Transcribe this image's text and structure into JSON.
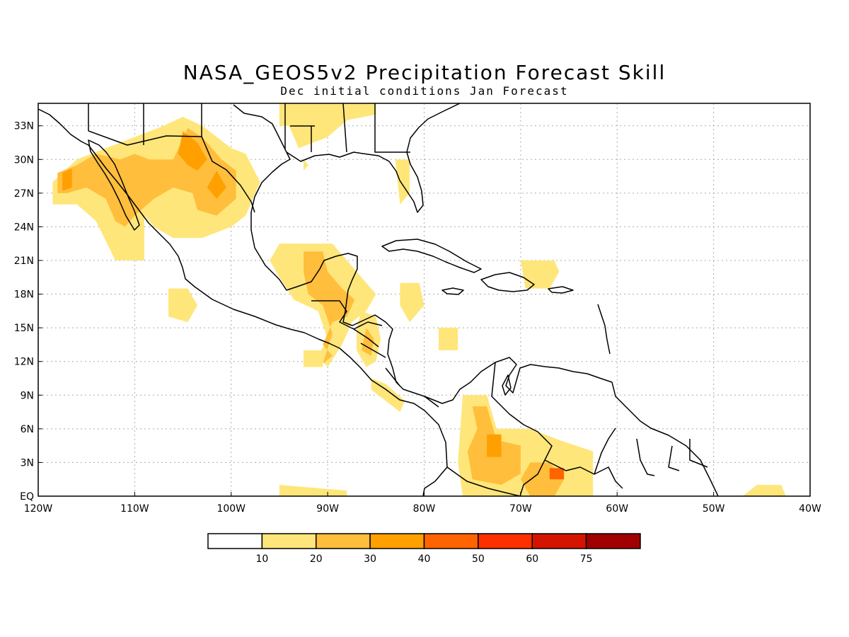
{
  "title": "NASA_GEOS5v2 Precipitation Forecast Skill",
  "subtitle": "Dec initial conditions  Jan Forecast",
  "map": {
    "lon_range": [
      -120,
      -40
    ],
    "lat_range": [
      0,
      35
    ],
    "lon_ticks": [
      {
        "value": -120,
        "label": "120W"
      },
      {
        "value": -110,
        "label": "110W"
      },
      {
        "value": -100,
        "label": "100W"
      },
      {
        "value": -90,
        "label": "90W"
      },
      {
        "value": -80,
        "label": "80W"
      },
      {
        "value": -70,
        "label": "70W"
      },
      {
        "value": -60,
        "label": "60W"
      },
      {
        "value": -50,
        "label": "50W"
      },
      {
        "value": -40,
        "label": "40W"
      }
    ],
    "lat_ticks": [
      {
        "value": 0,
        "label": "EQ"
      },
      {
        "value": 3,
        "label": "3N"
      },
      {
        "value": 6,
        "label": "6N"
      },
      {
        "value": 9,
        "label": "9N"
      },
      {
        "value": 12,
        "label": "12N"
      },
      {
        "value": 15,
        "label": "15N"
      },
      {
        "value": 18,
        "label": "18N"
      },
      {
        "value": 21,
        "label": "21N"
      },
      {
        "value": 24,
        "label": "24N"
      },
      {
        "value": 27,
        "label": "27N"
      },
      {
        "value": 30,
        "label": "30N"
      },
      {
        "value": 33,
        "label": "33N"
      }
    ],
    "grid": true,
    "skill_regions": [
      {
        "level": 10,
        "points": [
          [
            -118.5,
            28
          ],
          [
            -116,
            30
          ],
          [
            -113,
            31
          ],
          [
            -110,
            32
          ],
          [
            -107,
            33
          ],
          [
            -105,
            33.8
          ],
          [
            -103,
            33
          ],
          [
            -100,
            31
          ],
          [
            -98.5,
            30.5
          ],
          [
            -97,
            28
          ],
          [
            -98.5,
            25
          ],
          [
            -100,
            24
          ],
          [
            -103,
            23
          ],
          [
            -106,
            23
          ],
          [
            -108,
            24
          ],
          [
            -109,
            25
          ],
          [
            -109,
            21
          ],
          [
            -112,
            21
          ],
          [
            -114,
            24.5
          ],
          [
            -116,
            26
          ],
          [
            -118.5,
            26
          ]
        ]
      },
      {
        "level": 20,
        "points": [
          [
            -118,
            28.8
          ],
          [
            -116,
            29.5
          ],
          [
            -114,
            30.5
          ],
          [
            -111.5,
            30
          ],
          [
            -110,
            30.5
          ],
          [
            -108.5,
            30
          ],
          [
            -106,
            30
          ],
          [
            -104.5,
            32.8
          ],
          [
            -103,
            32
          ],
          [
            -101,
            30
          ],
          [
            -99.5,
            29
          ],
          [
            -99.5,
            26.5
          ],
          [
            -101.5,
            25
          ],
          [
            -103.5,
            25.5
          ],
          [
            -104,
            27
          ],
          [
            -106,
            27.5
          ],
          [
            -108,
            26.5
          ],
          [
            -110,
            25
          ],
          [
            -111,
            24
          ],
          [
            -112,
            24.5
          ],
          [
            -113,
            26.5
          ],
          [
            -115,
            27.5
          ],
          [
            -117,
            27
          ],
          [
            -118,
            27
          ]
        ]
      },
      {
        "level": 30,
        "points": [
          [
            -117.5,
            28.8
          ],
          [
            -116.5,
            29.2
          ],
          [
            -116.5,
            27.5
          ],
          [
            -117.5,
            27.2
          ]
        ]
      },
      {
        "level": 30,
        "points": [
          [
            -105,
            32.5
          ],
          [
            -103.5,
            31.5
          ],
          [
            -102.5,
            30
          ],
          [
            -103.5,
            29
          ],
          [
            -104.5,
            29.5
          ],
          [
            -105.5,
            30.5
          ]
        ]
      },
      {
        "level": 30,
        "points": [
          [
            -101.5,
            29
          ],
          [
            -100.5,
            27.5
          ],
          [
            -101.5,
            26.5
          ],
          [
            -102.5,
            27.5
          ]
        ]
      },
      {
        "level": 10,
        "points": [
          [
            -95,
            22.5
          ],
          [
            -89.5,
            22.5
          ],
          [
            -86.5,
            19.5
          ],
          [
            -85,
            18
          ],
          [
            -86,
            16.5
          ],
          [
            -87.5,
            15.5
          ],
          [
            -88.5,
            13.5
          ],
          [
            -90,
            11.5
          ],
          [
            -91,
            12.5
          ],
          [
            -90,
            14
          ],
          [
            -91,
            16.5
          ],
          [
            -93.5,
            17.5
          ],
          [
            -95,
            19.5
          ],
          [
            -96,
            21
          ]
        ]
      },
      {
        "level": 20,
        "points": [
          [
            -92.5,
            21.8
          ],
          [
            -90.5,
            21.8
          ],
          [
            -90,
            20
          ],
          [
            -88.5,
            18.5
          ],
          [
            -87.2,
            17.5
          ],
          [
            -88,
            16
          ],
          [
            -89.5,
            15.5
          ],
          [
            -90.5,
            13.5
          ],
          [
            -89.5,
            12.5
          ],
          [
            -90.5,
            11.8
          ],
          [
            -89.5,
            14.5
          ],
          [
            -90.5,
            17
          ],
          [
            -92,
            18
          ],
          [
            -92.5,
            20
          ]
        ]
      },
      {
        "level": 10,
        "points": [
          [
            -86.5,
            16.5
          ],
          [
            -85,
            16
          ],
          [
            -84.5,
            14
          ],
          [
            -85,
            12
          ],
          [
            -86,
            11.5
          ],
          [
            -87,
            13
          ],
          [
            -87,
            15
          ]
        ]
      },
      {
        "level": 20,
        "points": [
          [
            -86,
            15
          ],
          [
            -85.2,
            14
          ],
          [
            -85.5,
            12.5
          ],
          [
            -86.5,
            13
          ]
        ]
      },
      {
        "level": 10,
        "points": [
          [
            -85.5,
            10.5
          ],
          [
            -84,
            10
          ],
          [
            -82,
            8.5
          ],
          [
            -82.5,
            7.5
          ],
          [
            -84,
            8.5
          ],
          [
            -85.5,
            9.5
          ]
        ]
      },
      {
        "level": 10,
        "points": [
          [
            -106.5,
            18.5
          ],
          [
            -104.5,
            18.5
          ],
          [
            -103.5,
            17
          ],
          [
            -104.5,
            15.5
          ],
          [
            -106.5,
            16
          ]
        ]
      },
      {
        "level": 10,
        "points": [
          [
            -92.5,
            13
          ],
          [
            -90.5,
            13
          ],
          [
            -90.5,
            11.5
          ],
          [
            -92.5,
            11.5
          ]
        ]
      },
      {
        "level": 10,
        "points": [
          [
            -82.5,
            19
          ],
          [
            -80.5,
            19
          ],
          [
            -80,
            17
          ],
          [
            -81.5,
            15.5
          ],
          [
            -82.5,
            17
          ]
        ]
      },
      {
        "level": 10,
        "points": [
          [
            -78.5,
            15
          ],
          [
            -76.5,
            15
          ],
          [
            -76.5,
            13
          ],
          [
            -78.5,
            13
          ]
        ]
      },
      {
        "level": 10,
        "points": [
          [
            -95,
            35
          ],
          [
            -85,
            35
          ],
          [
            -85,
            34
          ],
          [
            -88,
            33.5
          ],
          [
            -90,
            32
          ],
          [
            -93,
            31
          ],
          [
            -94,
            33
          ],
          [
            -95,
            33
          ]
        ]
      },
      {
        "level": 10,
        "points": [
          [
            -83,
            30
          ],
          [
            -81.5,
            30
          ],
          [
            -81.5,
            27
          ],
          [
            -82.5,
            26
          ]
        ]
      },
      {
        "level": 10,
        "points": [
          [
            -92.5,
            30
          ],
          [
            -92,
            29.5
          ],
          [
            -92.5,
            29
          ]
        ]
      },
      {
        "level": 10,
        "points": [
          [
            -76,
            9
          ],
          [
            -73.5,
            9
          ],
          [
            -72.5,
            6
          ],
          [
            -69,
            6
          ],
          [
            -66,
            5
          ],
          [
            -62.5,
            4
          ],
          [
            -62.5,
            0
          ],
          [
            -76,
            0
          ],
          [
            -76.5,
            3
          ]
        ]
      },
      {
        "level": 20,
        "points": [
          [
            -75,
            8
          ],
          [
            -73.5,
            8
          ],
          [
            -72.5,
            5
          ],
          [
            -70,
            4.5
          ],
          [
            -70,
            2
          ],
          [
            -72,
            1
          ],
          [
            -75,
            1.5
          ],
          [
            -75.5,
            4
          ],
          [
            -74.5,
            6
          ]
        ]
      },
      {
        "level": 20,
        "points": [
          [
            -69,
            3
          ],
          [
            -67,
            3
          ],
          [
            -65.5,
            1.5
          ],
          [
            -66.5,
            0
          ],
          [
            -69,
            0
          ],
          [
            -70,
            1.5
          ]
        ]
      },
      {
        "level": 40,
        "points": [
          [
            -67,
            2.5
          ],
          [
            -65.5,
            2.5
          ],
          [
            -65.5,
            1.5
          ],
          [
            -67,
            1.5
          ]
        ]
      },
      {
        "level": 30,
        "points": [
          [
            -73.5,
            5.5
          ],
          [
            -72,
            5.5
          ],
          [
            -72,
            3.5
          ],
          [
            -73.5,
            3.5
          ]
        ]
      },
      {
        "level": 10,
        "points": [
          [
            -70,
            21
          ],
          [
            -66.5,
            21
          ],
          [
            -66,
            20
          ],
          [
            -67,
            18.5
          ],
          [
            -69.5,
            18.5
          ]
        ]
      },
      {
        "level": 10,
        "points": [
          [
            -95,
            1
          ],
          [
            -88,
            0.5
          ],
          [
            -88,
            0
          ],
          [
            -95,
            0
          ]
        ]
      },
      {
        "level": 10,
        "points": [
          [
            -45.5,
            1
          ],
          [
            -43,
            1
          ],
          [
            -42.5,
            0
          ],
          [
            -47,
            0
          ]
        ]
      }
    ]
  },
  "colorbar": {
    "boundaries": [
      10,
      20,
      30,
      40,
      50,
      60,
      75
    ],
    "labels": [
      "10",
      "20",
      "30",
      "40",
      "50",
      "60",
      "75"
    ],
    "colors": [
      "#ffffff",
      "#ffe67a",
      "#ffbe3c",
      "#ff9f00",
      "#ff6400",
      "#ff3000",
      "#d41400",
      "#a00000"
    ]
  }
}
